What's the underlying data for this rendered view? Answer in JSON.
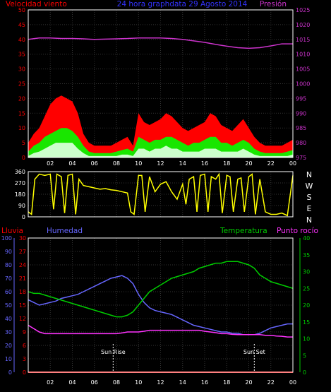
{
  "header": {
    "left_label": "Velocidad viento",
    "title": "24 hora graphdata  29 Agosto 2014",
    "right_label": "Presión"
  },
  "colors": {
    "background": "#000000",
    "frame": "#ffffff",
    "wind_gust": "#ff0000",
    "wind_avg": "#00ff00",
    "wind_low": "#ffffff",
    "pressure": "#cc33cc",
    "direction": "#ffff00",
    "rain": "#ff0000",
    "humidity": "#6666ff",
    "temperature": "#00cc00",
    "dewpoint": "#ff33ff",
    "left_axis_text": "#ff0000",
    "humidity_axis_text": "#6666ff",
    "temp_axis_text": "#00cc00",
    "pressure_axis_text": "#cc33cc"
  },
  "chart_data": [
    {
      "type": "area",
      "panel": "wind_pressure",
      "title": "24 hora graphdata  29 Agosto 2014",
      "ylabel_left": "Velocidad viento",
      "ylabel_right": "Presión",
      "ylim_left": [
        0,
        50
      ],
      "ylim_right": [
        975,
        1025
      ],
      "yticks_left": [
        "0",
        "5",
        "10",
        "15",
        "20",
        "25",
        "30",
        "35",
        "40",
        "45",
        "50"
      ],
      "yticks_right": [
        "975",
        "980",
        "985",
        "990",
        "995",
        "1000",
        "1005",
        "1010",
        "1015",
        "1020",
        "1025"
      ],
      "x_ticks": [
        "02",
        "04",
        "06",
        "08",
        "10",
        "12",
        "14",
        "16",
        "18",
        "20",
        "22",
        "00"
      ],
      "xlim": [
        0,
        24
      ],
      "grid": true,
      "series": [
        {
          "name": "Velocidad viento",
          "role": "gust",
          "axis": "left",
          "x": [
            0,
            0.5,
            1,
            1.5,
            2,
            2.5,
            3,
            3.5,
            4,
            4.5,
            5,
            5.5,
            6,
            6.5,
            7,
            7.5,
            8,
            8.5,
            9,
            9.5,
            10,
            10.5,
            11,
            11.5,
            12,
            12.5,
            13,
            13.5,
            14,
            14.5,
            15,
            15.5,
            16,
            16.5,
            17,
            17.5,
            18,
            18.5,
            19,
            19.5,
            20,
            20.5,
            21,
            21.5,
            22,
            22.5,
            23,
            23.5,
            24
          ],
          "values": [
            5,
            8,
            10,
            14,
            18,
            20,
            21,
            20,
            19,
            15,
            8,
            5,
            4,
            4,
            4,
            4,
            5,
            6,
            7,
            4,
            15,
            12,
            11,
            12,
            13,
            15,
            14,
            12,
            10,
            9,
            10,
            11,
            12,
            15,
            14,
            11,
            10,
            9,
            11,
            13,
            10,
            7,
            5,
            4,
            4,
            4,
            4,
            5,
            6
          ]
        },
        {
          "name": "Promedio",
          "role": "average",
          "axis": "left",
          "x": [
            0,
            0.5,
            1,
            1.5,
            2,
            2.5,
            3,
            3.5,
            4,
            4.5,
            5,
            5.5,
            6,
            6.5,
            7,
            7.5,
            8,
            8.5,
            9,
            9.5,
            10,
            10.5,
            11,
            11.5,
            12,
            12.5,
            13,
            13.5,
            14,
            14.5,
            15,
            15.5,
            16,
            16.5,
            17,
            17.5,
            18,
            18.5,
            19,
            19.5,
            20,
            20.5,
            21,
            21.5,
            22,
            22.5,
            23,
            23.5,
            24
          ],
          "values": [
            2,
            4,
            5,
            7,
            8,
            9,
            10,
            10,
            9,
            7,
            4,
            2,
            1.5,
            1.5,
            1.5,
            1.5,
            2,
            2.5,
            3,
            2,
            7,
            6,
            5,
            6,
            6,
            7,
            7,
            6,
            5,
            4,
            5,
            5,
            6,
            7,
            7,
            5,
            5,
            4,
            5,
            6,
            5,
            3,
            2,
            1.5,
            1.5,
            1.5,
            1.5,
            2,
            2.5
          ]
        },
        {
          "name": "Minimo",
          "role": "low",
          "axis": "left",
          "x": [
            0,
            0.5,
            1,
            1.5,
            2,
            2.5,
            3,
            3.5,
            4,
            4.5,
            5,
            5.5,
            6,
            6.5,
            7,
            7.5,
            8,
            8.5,
            9,
            9.5,
            10,
            10.5,
            11,
            11.5,
            12,
            12.5,
            13,
            13.5,
            14,
            14.5,
            15,
            15.5,
            16,
            16.5,
            17,
            17.5,
            18,
            18.5,
            19,
            19.5,
            20,
            20.5,
            21,
            21.5,
            22,
            22.5,
            23,
            23.5,
            24
          ],
          "values": [
            0.5,
            1.5,
            2,
            3,
            4,
            5,
            5,
            5,
            5,
            3,
            1.5,
            0.5,
            0.5,
            0.5,
            0.5,
            0.5,
            0.5,
            1,
            1,
            0.5,
            3,
            3,
            2,
            3,
            3,
            4,
            3,
            3,
            2,
            2,
            2,
            2,
            3,
            3,
            3,
            2,
            2,
            2,
            2,
            3,
            2,
            1,
            0.5,
            0.5,
            0.5,
            0.5,
            0.5,
            0.5,
            1
          ]
        },
        {
          "name": "Presión",
          "role": "pressure",
          "axis": "right",
          "x": [
            0,
            1,
            2,
            3,
            4,
            5,
            6,
            7,
            8,
            9,
            10,
            11,
            12,
            13,
            14,
            15,
            16,
            17,
            18,
            19,
            20,
            21,
            22,
            23,
            24
          ],
          "values": [
            1015,
            1015.5,
            1015.5,
            1015.3,
            1015.3,
            1015.2,
            1015,
            1015.1,
            1015.2,
            1015.3,
            1015.5,
            1015.5,
            1015.5,
            1015.3,
            1015,
            1014.5,
            1014,
            1013.3,
            1012.7,
            1012.2,
            1012,
            1012.2,
            1012.8,
            1013.5,
            1013.5
          ]
        }
      ]
    },
    {
      "type": "line",
      "panel": "wind_direction",
      "ylim": [
        0,
        360
      ],
      "yticks_left": [
        "0",
        "90",
        "180",
        "270",
        "360"
      ],
      "yticks_right": [
        "N",
        "E",
        "S",
        "W",
        "N"
      ],
      "series": [
        {
          "name": "Dirección viento",
          "x": [
            0,
            0.3,
            0.6,
            1,
            1.5,
            2,
            2.3,
            2.6,
            3,
            3.3,
            3.6,
            4,
            4.3,
            4.6,
            5,
            5.5,
            6,
            6.5,
            7,
            7.5,
            8,
            8.5,
            9,
            9.3,
            9.6,
            10,
            10.3,
            10.6,
            11,
            11.5,
            12,
            12.5,
            13,
            13.5,
            14,
            14.3,
            14.6,
            15,
            15.3,
            15.6,
            16,
            16.3,
            16.6,
            17,
            17.3,
            17.6,
            18,
            18.3,
            18.6,
            19,
            19.3,
            19.6,
            20,
            20.3,
            20.6,
            21,
            21.5,
            22,
            22.5,
            23,
            23.5,
            24
          ],
          "values": [
            40,
            20,
            300,
            340,
            330,
            340,
            60,
            340,
            320,
            30,
            330,
            340,
            20,
            300,
            250,
            240,
            230,
            220,
            225,
            215,
            210,
            200,
            190,
            40,
            20,
            330,
            330,
            40,
            320,
            200,
            260,
            280,
            200,
            140,
            260,
            100,
            300,
            320,
            40,
            330,
            340,
            40,
            320,
            300,
            340,
            30,
            330,
            320,
            40,
            300,
            310,
            40,
            320,
            340,
            20,
            300,
            40,
            20,
            20,
            30,
            10,
            330
          ]
        }
      ]
    },
    {
      "type": "line",
      "panel": "rain_humidity_temp",
      "ylabel_left_outer": "Lluvia",
      "ylabel_left_inner": "Humedad",
      "ylabel_right_inner": "Temperatura",
      "ylabel_right_outer": "Punto rocío",
      "yticks_rain": [
        "0",
        "3",
        "6",
        "9",
        "12",
        "15",
        "18",
        "21",
        "24",
        "27",
        "30"
      ],
      "yticks_humidity": [
        "0",
        "10",
        "20",
        "30",
        "40",
        "50",
        "60",
        "70",
        "80",
        "90",
        "100"
      ],
      "yticks_temp": [
        "0",
        "5",
        "10",
        "15",
        "20",
        "25",
        "30",
        "35",
        "40"
      ],
      "ylim_humidity": [
        0,
        100
      ],
      "ylim_temp": [
        0,
        40
      ],
      "ylim_rain": [
        0,
        30
      ],
      "x_ticks": [
        "02",
        "04",
        "06",
        "08",
        "10",
        "12",
        "14",
        "16",
        "18",
        "20",
        "22",
        "00"
      ],
      "xlim": [
        0,
        24
      ],
      "grid": true,
      "annotations": [
        {
          "label": "Sun Rise",
          "x": 7.7
        },
        {
          "label": "Sun Set",
          "x": 20.5
        }
      ],
      "series": [
        {
          "name": "Humedad",
          "axis": "humidity",
          "x": [
            0,
            0.5,
            1,
            1.5,
            2,
            2.5,
            3,
            3.5,
            4,
            4.5,
            5,
            5.5,
            6,
            6.5,
            7,
            7.5,
            8,
            8.5,
            9,
            9.5,
            10,
            10.5,
            11,
            11.5,
            12,
            12.5,
            13,
            13.5,
            14,
            14.5,
            15,
            15.5,
            16,
            16.5,
            17,
            17.5,
            18,
            18.5,
            19,
            19.5,
            20,
            20.5,
            21,
            21.5,
            22,
            22.5,
            23,
            23.5,
            24
          ],
          "values": [
            54,
            52,
            50,
            51,
            52,
            53,
            55,
            56,
            57,
            58,
            60,
            62,
            64,
            66,
            68,
            70,
            71,
            72,
            70,
            66,
            58,
            52,
            48,
            46,
            45,
            44,
            43,
            41,
            39,
            37,
            35,
            34,
            33,
            32,
            31,
            30,
            30,
            29,
            29,
            28,
            28,
            28,
            29,
            31,
            33,
            34,
            35,
            36,
            36
          ]
        },
        {
          "name": "Temperatura",
          "axis": "temp",
          "x": [
            0,
            0.5,
            1,
            1.5,
            2,
            2.5,
            3,
            3.5,
            4,
            4.5,
            5,
            5.5,
            6,
            6.5,
            7,
            7.5,
            8,
            8.5,
            9,
            9.5,
            10,
            10.5,
            11,
            11.5,
            12,
            12.5,
            13,
            13.5,
            14,
            14.5,
            15,
            15.5,
            16,
            16.5,
            17,
            17.5,
            18,
            18.5,
            19,
            19.5,
            20,
            20.5,
            21,
            21.5,
            22,
            22.5,
            23,
            23.5,
            24
          ],
          "values": [
            24,
            23.5,
            23.5,
            23,
            22.5,
            22,
            21.5,
            21,
            20.5,
            20,
            19.5,
            19,
            18.5,
            18,
            17.5,
            17,
            16.5,
            16.5,
            17,
            18,
            20,
            22,
            24,
            25,
            26,
            27,
            28,
            28.5,
            29,
            29.5,
            30,
            31,
            31.5,
            32,
            32.5,
            32.5,
            33,
            33,
            33,
            32.5,
            32,
            31,
            29,
            28,
            27,
            26.5,
            26,
            25.5,
            25
          ]
        },
        {
          "name": "Punto rocío",
          "axis": "temp",
          "x": [
            0,
            0.5,
            1,
            1.5,
            2,
            2.5,
            3,
            3.5,
            4,
            4.5,
            5,
            5.5,
            6,
            6.5,
            7,
            7.5,
            8,
            8.5,
            9,
            9.5,
            10,
            10.5,
            11,
            11.5,
            12,
            12.5,
            13,
            13.5,
            14,
            14.5,
            15,
            15.5,
            16,
            16.5,
            17,
            17.5,
            18,
            18.5,
            19,
            19.5,
            20,
            20.5,
            21,
            21.5,
            22,
            22.5,
            23,
            23.5,
            24
          ],
          "values": [
            14,
            13,
            12,
            11.5,
            11.5,
            11.5,
            11.5,
            11.5,
            11.5,
            11.5,
            11.5,
            11.5,
            11.5,
            11.5,
            11.5,
            11.5,
            11.5,
            11.7,
            12,
            12,
            12,
            12.2,
            12.5,
            12.5,
            12.5,
            12.5,
            12.5,
            12.5,
            12.5,
            12.5,
            12.5,
            12.5,
            12.2,
            12,
            11.8,
            11.5,
            11.5,
            11.3,
            11.2,
            11.2,
            11.2,
            11.2,
            11.2,
            11,
            11,
            10.8,
            10.7,
            10.5,
            10.5
          ]
        },
        {
          "name": "Lluvia",
          "axis": "rain",
          "x": [
            0,
            24
          ],
          "values": [
            0,
            0
          ]
        }
      ]
    }
  ]
}
